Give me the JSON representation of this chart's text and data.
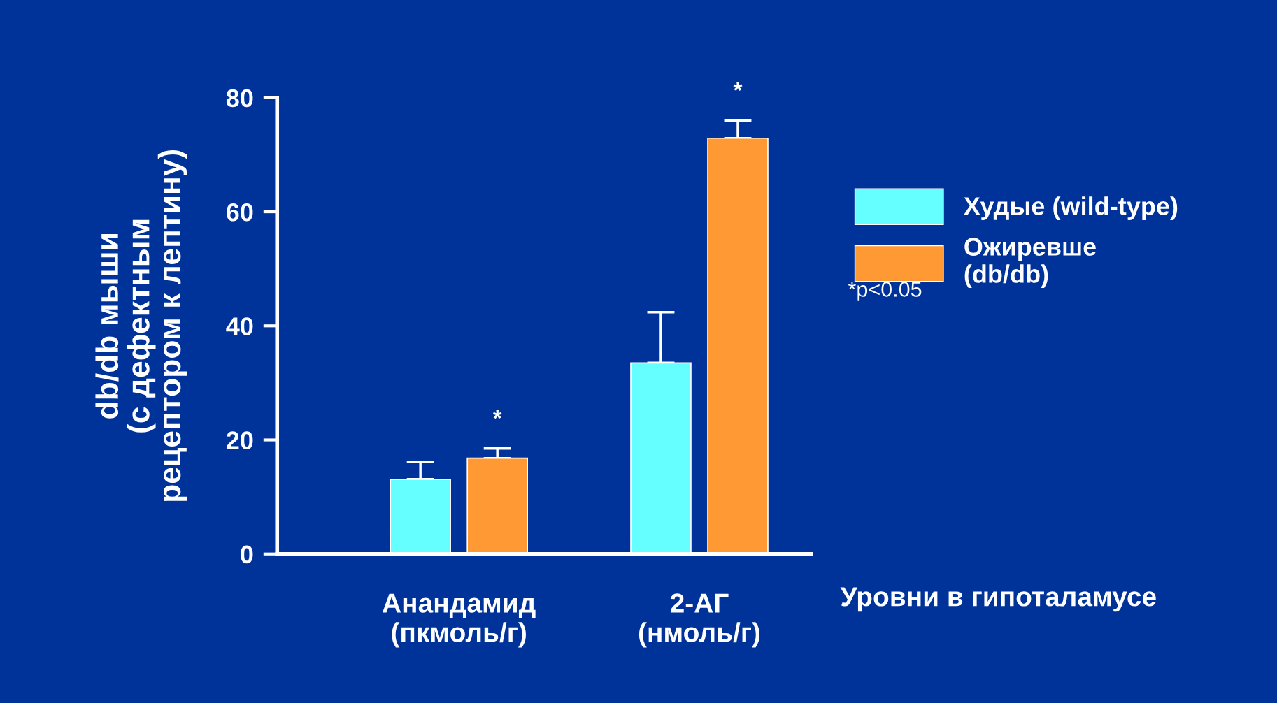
{
  "chart_data": {
    "type": "bar",
    "categories": [
      "Анандамид\n(пкмоль/г)",
      "2-АГ\n(нмоль/г)"
    ],
    "ylabel": "db/db мыши\n(с дефектным\nрецептором к лептину)",
    "series": [
      {
        "name": "Худые (wild-type)",
        "color": "#66ffff",
        "values": [
          13.1,
          33.5
        ],
        "errors": [
          [
            13.1,
            16.1
          ],
          [
            33.5,
            42.4
          ]
        ]
      },
      {
        "name": "Ожиревше\n(db/db)",
        "color": "#ff9933",
        "values": [
          16.8,
          72.9
        ],
        "errors": [
          [
            16.8,
            18.5
          ],
          [
            72.9,
            76.0
          ]
        ]
      }
    ],
    "ylim": [
      0,
      80
    ],
    "yticks": [
      0,
      20,
      40,
      60,
      80
    ],
    "grid": false,
    "legend": "right",
    "annotations": [
      "*",
      "*",
      "*p<0.05",
      "Уровни в гипоталамусе"
    ]
  }
}
